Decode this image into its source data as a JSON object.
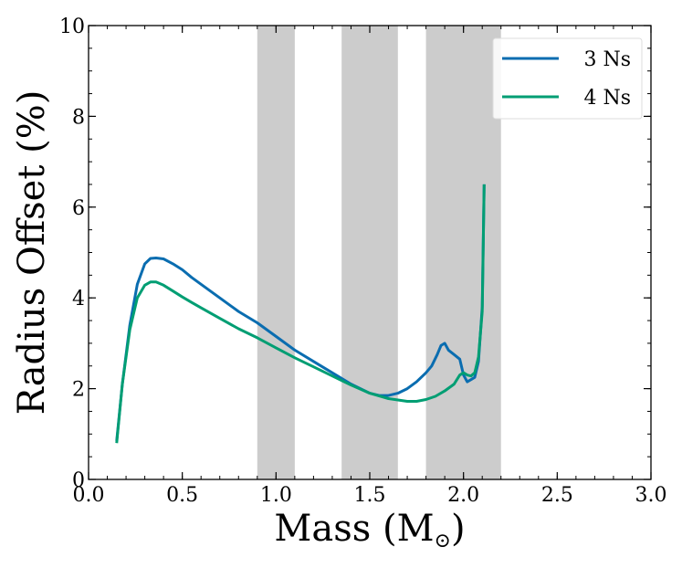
{
  "chart_data": {
    "type": "line",
    "title": "",
    "xlabel": "Mass (M",
    "xlabel_symbol": "⊙",
    "xlabel_close": ")",
    "ylabel": "Radius Offset (%)",
    "xlim": [
      0.0,
      3.0
    ],
    "ylim": [
      0,
      10
    ],
    "xticks": [
      0.0,
      0.5,
      1.0,
      1.5,
      2.0,
      2.5,
      3.0
    ],
    "xtick_labels": [
      "0.0",
      "0.5",
      "1.0",
      "1.5",
      "2.0",
      "2.5",
      "3.0"
    ],
    "yticks": [
      0,
      2,
      4,
      6,
      8,
      10
    ],
    "ytick_labels": [
      "0",
      "2",
      "4",
      "6",
      "8",
      "10"
    ],
    "grid": false,
    "legend_position": "top-right",
    "shaded_bands": [
      {
        "x_start": 0.9,
        "x_end": 1.1
      },
      {
        "x_start": 1.35,
        "x_end": 1.65
      },
      {
        "x_start": 1.8,
        "x_end": 2.2
      }
    ],
    "band_color": "#cccccc",
    "series": [
      {
        "name": "3 Ns",
        "color": "#0a6db0",
        "x": [
          0.15,
          0.18,
          0.22,
          0.26,
          0.3,
          0.33,
          0.36,
          0.4,
          0.45,
          0.5,
          0.55,
          0.6,
          0.7,
          0.8,
          0.9,
          1.0,
          1.1,
          1.2,
          1.3,
          1.4,
          1.5,
          1.55,
          1.6,
          1.65,
          1.7,
          1.75,
          1.8,
          1.83,
          1.86,
          1.88,
          1.9,
          1.92,
          1.95,
          1.98,
          2.0,
          2.02,
          2.04,
          2.06,
          2.08,
          2.1,
          2.11
        ],
        "values": [
          0.85,
          2.1,
          3.4,
          4.3,
          4.75,
          4.87,
          4.88,
          4.86,
          4.75,
          4.62,
          4.45,
          4.3,
          4.0,
          3.7,
          3.45,
          3.15,
          2.85,
          2.6,
          2.35,
          2.1,
          1.9,
          1.85,
          1.85,
          1.9,
          2.0,
          2.15,
          2.35,
          2.5,
          2.75,
          2.95,
          3.0,
          2.85,
          2.75,
          2.65,
          2.3,
          2.15,
          2.2,
          2.25,
          2.6,
          3.8,
          6.5
        ]
      },
      {
        "name": "4 Ns",
        "color": "#009e73",
        "x": [
          0.15,
          0.18,
          0.22,
          0.26,
          0.3,
          0.33,
          0.36,
          0.4,
          0.45,
          0.5,
          0.55,
          0.6,
          0.7,
          0.8,
          0.9,
          1.0,
          1.1,
          1.2,
          1.3,
          1.4,
          1.5,
          1.6,
          1.7,
          1.75,
          1.8,
          1.85,
          1.9,
          1.95,
          1.98,
          2.0,
          2.02,
          2.04,
          2.06,
          2.08,
          2.1,
          2.11
        ],
        "values": [
          0.8,
          2.1,
          3.3,
          4.0,
          4.28,
          4.35,
          4.35,
          4.28,
          4.15,
          4.02,
          3.9,
          3.78,
          3.55,
          3.32,
          3.12,
          2.9,
          2.68,
          2.48,
          2.28,
          2.08,
          1.9,
          1.78,
          1.72,
          1.72,
          1.76,
          1.83,
          1.95,
          2.1,
          2.3,
          2.35,
          2.3,
          2.28,
          2.35,
          2.7,
          3.7,
          6.5
        ]
      }
    ]
  }
}
